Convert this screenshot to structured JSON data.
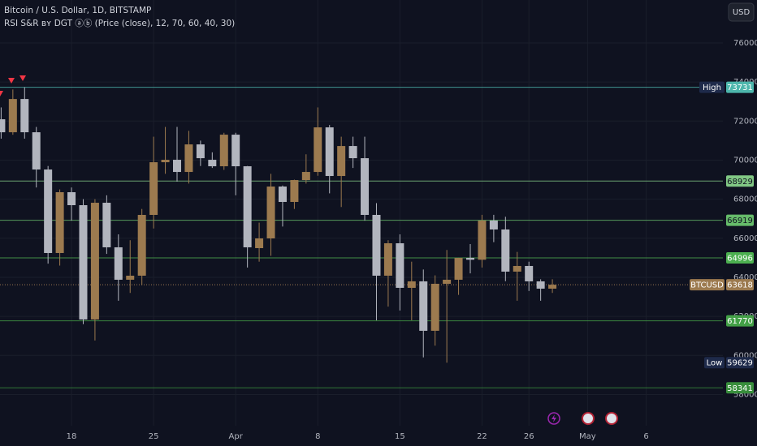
{
  "chart_data": {
    "type": "candlestick",
    "title": "Bitcoin / U.S. Dollar, 1D, BITSTAMP",
    "indicator": "RSI S&R ʙʏ DGT ⓐⓑ (Price (close), 12, 70, 60, 40, 30)",
    "currency": "USD",
    "x": [
      "Mar 12",
      "Mar 13",
      "Mar 14",
      "Mar 15",
      "Mar 16",
      "Mar 17",
      "Mar 18",
      "Mar 19",
      "Mar 20",
      "Mar 21",
      "Mar 22",
      "Mar 23",
      "Mar 24",
      "Mar 25",
      "Mar 26",
      "Mar 27",
      "Mar 28",
      "Mar 29",
      "Mar 30",
      "Mar 31",
      "Apr 1",
      "Apr 2",
      "Apr 3",
      "Apr 4",
      "Apr 5",
      "Apr 6",
      "Apr 7",
      "Apr 8",
      "Apr 9",
      "Apr 10",
      "Apr 11",
      "Apr 12",
      "Apr 13",
      "Apr 14",
      "Apr 15",
      "Apr 16",
      "Apr 17",
      "Apr 18",
      "Apr 19",
      "Apr 20",
      "Apr 21",
      "Apr 22",
      "Apr 23",
      "Apr 24",
      "Apr 25",
      "Apr 26",
      "Apr 27",
      "Apr 28"
    ],
    "open": [
      72093,
      71428,
      73130,
      71428,
      69520,
      65245,
      68358,
      67694,
      61842,
      67818,
      65536,
      63876,
      64083,
      67196,
      69893,
      70018,
      69395,
      70806,
      70018,
      69686,
      71304,
      69686,
      65494,
      65992,
      68648,
      67860,
      68980,
      69395,
      71678,
      69188,
      70723,
      70100,
      67196,
      64083,
      65743,
      63461,
      63793,
      61261,
      63668,
      63876,
      64996,
      64900,
      66905,
      66449,
      64291,
      64581,
      63793,
      63419
    ],
    "high": [
      72700,
      73620,
      73731,
      71700,
      69700,
      68500,
      68600,
      68000,
      68000,
      68200,
      66200,
      65900,
      67500,
      71200,
      71700,
      71700,
      71500,
      71000,
      70400,
      71400,
      71400,
      69700,
      66800,
      69300,
      68700,
      69000,
      70300,
      72700,
      71800,
      71200,
      71200,
      71200,
      67800,
      65900,
      66200,
      64800,
      64400,
      64100,
      65400,
      65000,
      65700,
      67200,
      67200,
      67100,
      65300,
      64800,
      63900,
      63900
    ],
    "low": [
      71100,
      71300,
      71100,
      68600,
      64700,
      64600,
      66900,
      61600,
      60763,
      65200,
      62800,
      63200,
      63600,
      66500,
      69300,
      68900,
      68800,
      69700,
      69600,
      69500,
      68200,
      64500,
      64800,
      65100,
      66600,
      67500,
      68800,
      69200,
      68300,
      67600,
      69600,
      66900,
      61800,
      62500,
      62300,
      61800,
      59900,
      60500,
      59629,
      63100,
      64200,
      64500,
      65800,
      63800,
      62800,
      63300,
      62800,
      63200
    ],
    "close": [
      71428,
      73130,
      71428,
      69520,
      65245,
      68358,
      67694,
      61842,
      67818,
      65536,
      63876,
      64083,
      67196,
      69893,
      70018,
      69395,
      70806,
      70100,
      69686,
      71304,
      69686,
      65536,
      65992,
      68648,
      67860,
      68980,
      69395,
      71678,
      69188,
      70723,
      70100,
      67196,
      64083,
      65743,
      63461,
      63793,
      61261,
      63668,
      63876,
      64996,
      64900,
      66905,
      66449,
      64291,
      64581,
      63793,
      63419,
      63618
    ],
    "up_color": "#9c7a4f",
    "down_color": "#b2b5be",
    "ylim": [
      56400,
      78200
    ],
    "yticks": [
      58000,
      60000,
      62000,
      64000,
      66000,
      68000,
      70000,
      72000,
      74000,
      76000
    ],
    "xticks": [
      {
        "value": "Mar 18",
        "label": "18"
      },
      {
        "value": "Mar 25",
        "label": "25"
      },
      {
        "value": "Apr 1",
        "label": "Apr"
      },
      {
        "value": "Apr 8",
        "label": "8"
      },
      {
        "value": "Apr 15",
        "label": "15"
      },
      {
        "value": "Apr 22",
        "label": "22"
      },
      {
        "value": "Apr 26",
        "label": "26"
      },
      {
        "value": "May 1",
        "label": "May"
      },
      {
        "value": "May 6",
        "label": "6"
      }
    ],
    "grid": true,
    "levels": [
      {
        "value": 73731,
        "name": "High",
        "color": "#4db6ac"
      },
      {
        "value": 68929,
        "color": "#81c784"
      },
      {
        "value": 66919,
        "color": "#66bb6a"
      },
      {
        "value": 64996,
        "color": "#4caf50"
      },
      {
        "value": 61770,
        "color": "#43a047"
      },
      {
        "value": 58341,
        "color": "#388e3c"
      }
    ],
    "markers": [
      {
        "name": "BTCUSD",
        "value": 63618,
        "color": "#9c7a4f"
      },
      {
        "name": "Low",
        "value": 59629,
        "color": "#1e2a4a"
      }
    ]
  }
}
